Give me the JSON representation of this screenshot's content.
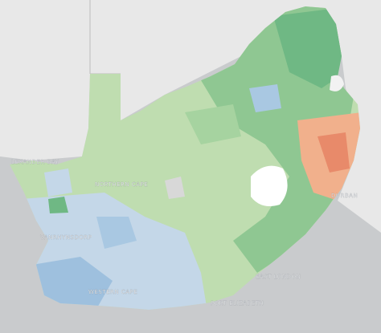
{
  "map": {
    "labels": [
      "LEXANDER BAY",
      "NORTHERN CAPE",
      "VANRHYNSDORP",
      "WESTERN CAPE",
      "PORT ELIZABETH",
      "EAST LONDON",
      "DURBAN"
    ]
  }
}
